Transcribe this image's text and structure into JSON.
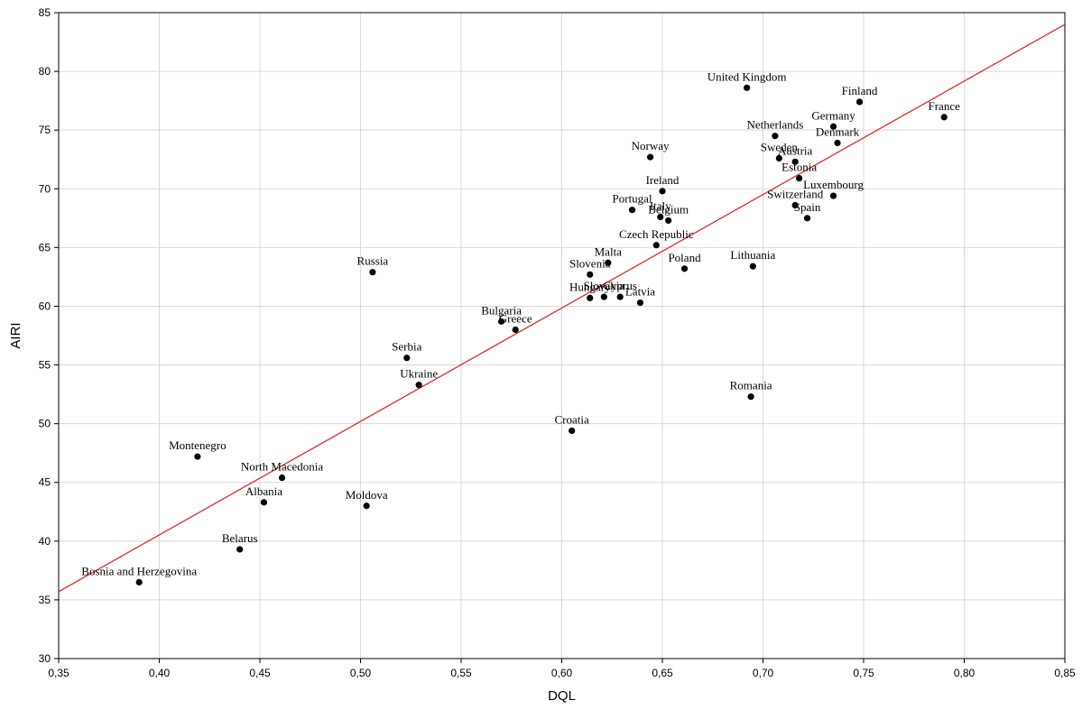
{
  "chart_data": {
    "type": "scatter",
    "title": "",
    "xlabel": "DQL",
    "ylabel": "AIRI",
    "xlim": [
      0.35,
      0.85
    ],
    "ylim": [
      30,
      85
    ],
    "xticks": [
      0.35,
      0.4,
      0.45,
      0.5,
      0.55,
      0.6,
      0.65,
      0.7,
      0.75,
      0.8,
      0.85
    ],
    "xtick_labels": [
      "0,35",
      "0,40",
      "0,45",
      "0,50",
      "0,55",
      "0,60",
      "0,65",
      "0,70",
      "0,75",
      "0,80",
      "0,85"
    ],
    "yticks": [
      30,
      35,
      40,
      45,
      50,
      55,
      60,
      65,
      70,
      75,
      80,
      85
    ],
    "ytick_labels": [
      "30",
      "35",
      "40",
      "45",
      "50",
      "55",
      "60",
      "65",
      "70",
      "75",
      "80",
      "85"
    ],
    "grid": true,
    "point_color": "#000000",
    "fit_line_color": "#e31a1c",
    "fit_line": {
      "x1": 0.35,
      "y1": 35.7,
      "x2": 0.85,
      "y2": 84.0
    },
    "points": [
      {
        "label": "United Kingdom",
        "x": 0.692,
        "y": 78.6
      },
      {
        "label": "Finland",
        "x": 0.748,
        "y": 77.4
      },
      {
        "label": "France",
        "x": 0.79,
        "y": 76.1
      },
      {
        "label": "Germany",
        "x": 0.735,
        "y": 75.3
      },
      {
        "label": "Netherlands",
        "x": 0.706,
        "y": 74.5
      },
      {
        "label": "Denmark",
        "x": 0.737,
        "y": 73.9
      },
      {
        "label": "Norway",
        "x": 0.644,
        "y": 72.7
      },
      {
        "label": "Sweden",
        "x": 0.708,
        "y": 72.6
      },
      {
        "label": "Austria",
        "x": 0.716,
        "y": 72.3
      },
      {
        "label": "Estonia",
        "x": 0.718,
        "y": 70.9
      },
      {
        "label": "Ireland",
        "x": 0.65,
        "y": 69.8
      },
      {
        "label": "Luxembourg",
        "x": 0.735,
        "y": 69.4
      },
      {
        "label": "Portugal",
        "x": 0.635,
        "y": 68.2
      },
      {
        "label": "Switzerland",
        "x": 0.716,
        "y": 68.6
      },
      {
        "label": "Italy",
        "x": 0.649,
        "y": 67.6
      },
      {
        "label": "Belgium",
        "x": 0.653,
        "y": 67.3
      },
      {
        "label": "Spain",
        "x": 0.722,
        "y": 67.5
      },
      {
        "label": "Czech Republic",
        "x": 0.647,
        "y": 65.2
      },
      {
        "label": "Malta",
        "x": 0.623,
        "y": 63.7
      },
      {
        "label": "Lithuania",
        "x": 0.695,
        "y": 63.4
      },
      {
        "label": "Poland",
        "x": 0.661,
        "y": 63.2
      },
      {
        "label": "Russia",
        "x": 0.506,
        "y": 62.9
      },
      {
        "label": "Slovenia",
        "x": 0.614,
        "y": 62.7
      },
      {
        "label": "Slovakia",
        "x": 0.621,
        "y": 60.8
      },
      {
        "label": "Cyprus",
        "x": 0.629,
        "y": 60.8
      },
      {
        "label": "Hungary",
        "x": 0.614,
        "y": 60.7
      },
      {
        "label": "Latvia",
        "x": 0.639,
        "y": 60.3
      },
      {
        "label": "Bulgaria",
        "x": 0.57,
        "y": 58.7
      },
      {
        "label": "Greece",
        "x": 0.577,
        "y": 58.0
      },
      {
        "label": "Serbia",
        "x": 0.523,
        "y": 55.6
      },
      {
        "label": "Ukraine",
        "x": 0.529,
        "y": 53.3
      },
      {
        "label": "Romania",
        "x": 0.694,
        "y": 52.3
      },
      {
        "label": "Croatia",
        "x": 0.605,
        "y": 49.4
      },
      {
        "label": "Montenegro",
        "x": 0.419,
        "y": 47.2
      },
      {
        "label": "North Macedonia",
        "x": 0.461,
        "y": 45.4
      },
      {
        "label": "Albania",
        "x": 0.452,
        "y": 43.3
      },
      {
        "label": "Moldova",
        "x": 0.503,
        "y": 43.0
      },
      {
        "label": "Belarus",
        "x": 0.44,
        "y": 39.3
      },
      {
        "label": "Bosnia and Herzegovina",
        "x": 0.39,
        "y": 36.5
      }
    ]
  }
}
